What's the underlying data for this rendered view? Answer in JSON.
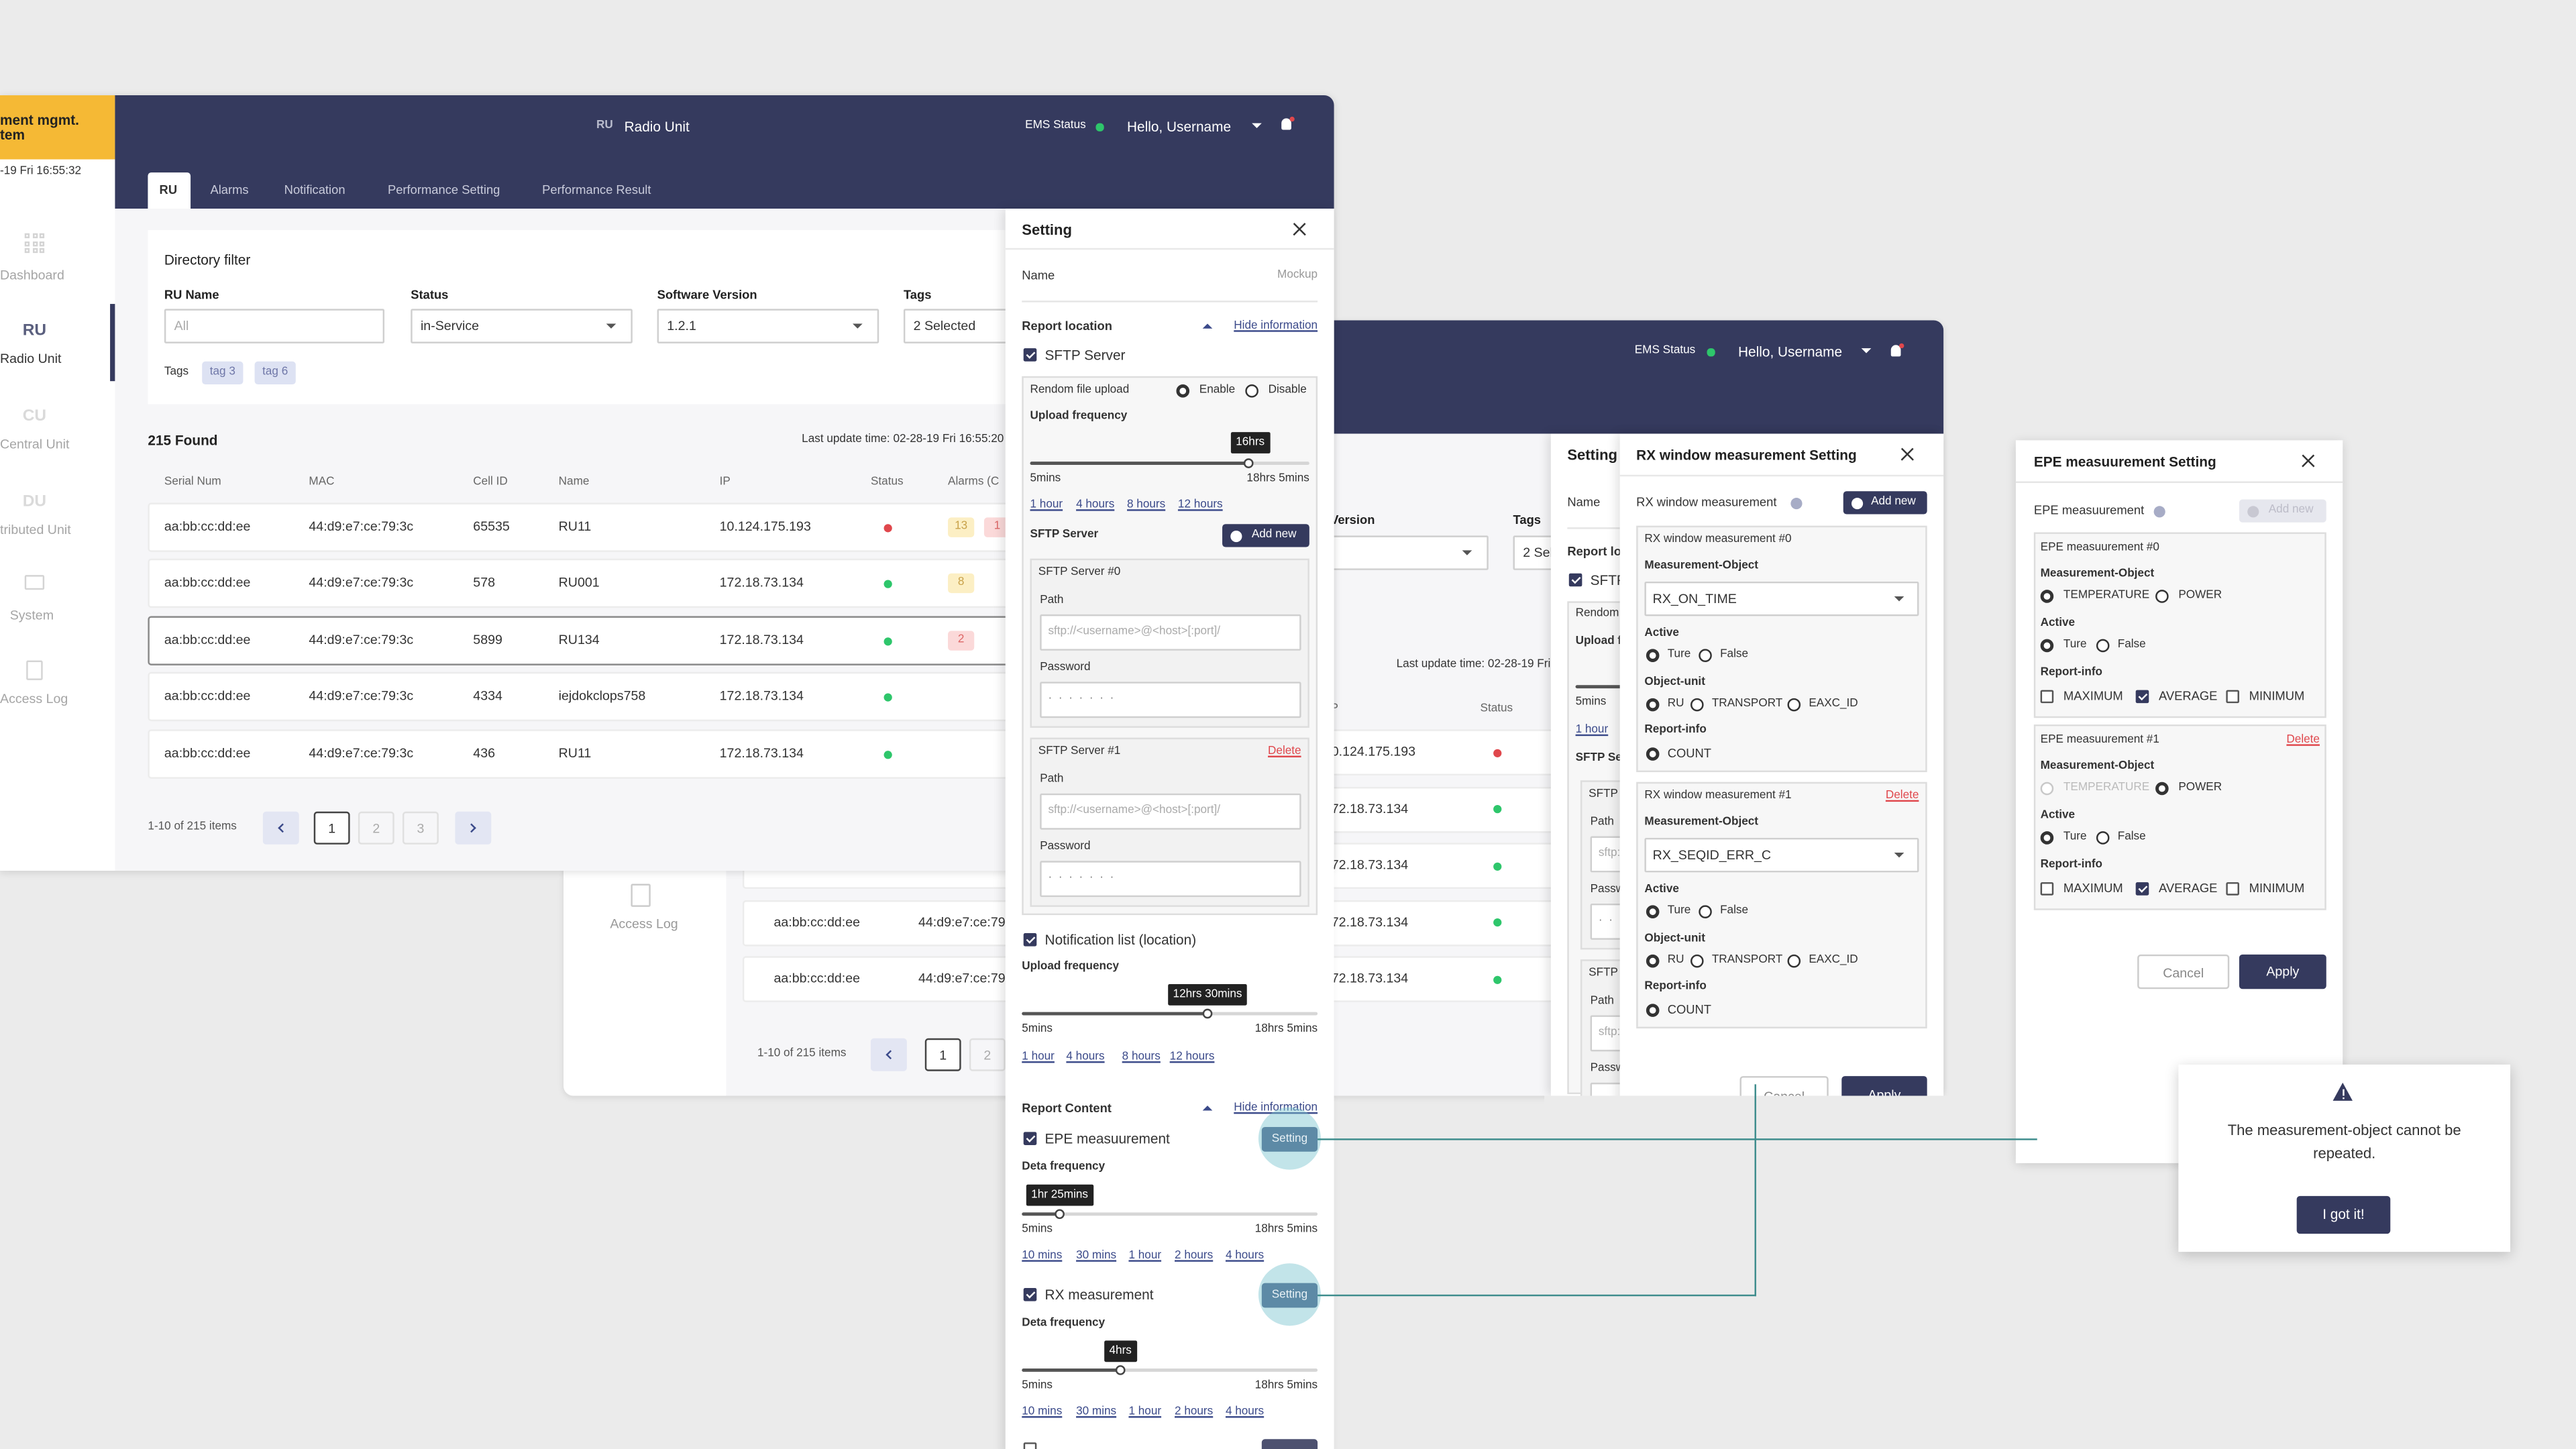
{
  "window1": {
    "brand": [
      "ment mgmt.",
      "tem"
    ],
    "datetime": "-19 Fri 16:55:32",
    "nav": [
      "Dashboard",
      "Radio Unit",
      "Central Unit",
      "tributed Unit",
      "System",
      "Access Log"
    ],
    "nav_icon_text": [
      "RU",
      "CU",
      "DU"
    ],
    "header": {
      "icon": "RU",
      "title": "Radio Unit",
      "ems": "EMS Status",
      "user": "Hello, Username"
    },
    "tabs": [
      "RU",
      "Alarms",
      "Notification",
      "Performance Setting",
      "Performance Result"
    ],
    "filter": {
      "title": "Directory filter",
      "labels": [
        "RU Name",
        "Status",
        "Software Version",
        "Tags"
      ],
      "values": [
        "All",
        "in-Service",
        "1.2.1",
        "2 Selected"
      ],
      "tags_label": "Tags",
      "tags": [
        "tag 3",
        "tag 6"
      ]
    },
    "found": "215 Found",
    "last_update": "Last update time: 02-28-19 Fri 16:55:20",
    "table": {
      "columns": [
        "Serial Num",
        "MAC",
        "Cell ID",
        "Name",
        "IP",
        "Status",
        "Alarms (C"
      ],
      "rows": [
        {
          "serial": "aa:bb:cc:dd:ee",
          "mac": "44:d9:e7:ce:79:3c",
          "cell": 65535,
          "name": "RU11",
          "ip": "10.124.175.193",
          "status_color": "#e0474c",
          "alarms": [
            {
              "value": 13,
              "color": "yellow"
            },
            {
              "value": 1,
              "color": "red"
            }
          ]
        },
        {
          "serial": "aa:bb:cc:dd:ee",
          "mac": "44:d9:e7:ce:79:3c",
          "cell": 578,
          "name": "RU001",
          "ip": "172.18.73.134",
          "status_color": "#2ec66b",
          "alarms": [
            {
              "value": 8,
              "color": "yellow"
            }
          ]
        },
        {
          "serial": "aa:bb:cc:dd:ee",
          "mac": "44:d9:e7:ce:79:3c",
          "cell": 5899,
          "name": "RU134",
          "ip": "172.18.73.134",
          "status_color": "#2ec66b",
          "alarms": [
            {
              "value": 2,
              "color": "red"
            }
          ]
        },
        {
          "serial": "aa:bb:cc:dd:ee",
          "mac": "44:d9:e7:ce:79:3c",
          "cell": 4334,
          "name": "iejdokclops758",
          "ip": "172.18.73.134",
          "status_color": "#2ec66b",
          "alarms": []
        },
        {
          "serial": "aa:bb:cc:dd:ee",
          "mac": "44:d9:e7:ce:79:3c",
          "cell": 436,
          "name": "RU11",
          "ip": "172.18.73.134",
          "status_color": "#2ec66b",
          "alarms": []
        }
      ]
    },
    "pagination": {
      "summary": "1-10 of 215 items",
      "pages": [
        "1",
        "2",
        "3"
      ]
    }
  },
  "setting": {
    "title": "Setting",
    "name_label": "Name",
    "name_value": "Mockup",
    "report_location": "Report location",
    "hide": "Hide information",
    "sftp_check": "SFTP Server",
    "random_upload": "Rendom file upload",
    "enable": "Enable",
    "disable": "Disable",
    "upload_frequency": "Upload frequency",
    "sftp_tooltip": "16hrs",
    "min": "5mins",
    "max": "18hrs 5mins",
    "upload_links": [
      "1 hour",
      "4 hours",
      "8 hours",
      "12 hours"
    ],
    "sftp_server": "SFTP Server",
    "add_new": "Add new",
    "servers": [
      {
        "title": "SFTP Server #0"
      },
      {
        "title": "SFTP Server #1",
        "delete": "Delete"
      }
    ],
    "path": "Path",
    "path_placeholder": "sftp://<username>@<host>[:port]/",
    "password": "Password",
    "password_dots": "· · · · · · ·",
    "notification_check": "Notification list (location)",
    "notification_tooltip": "12hrs 30mins",
    "report_content": "Report Content",
    "setting_button": "Setting",
    "measurements": [
      {
        "name": "EPE measuurement",
        "tooltip": "1hr 25mins"
      },
      {
        "name": "RX measurement",
        "tooltip": "4hrs"
      }
    ],
    "data_frequency": "Deta frequency",
    "data_links": [
      "10 mins",
      "30 mins",
      "1 hour",
      "2 hours",
      "4 hours"
    ]
  },
  "rx": {
    "title": "RX window measurement Setting",
    "label": "RX window measurement",
    "add_new": "Add new",
    "items": [
      {
        "title": "RX window measurement #0",
        "object": "RX_ON_TIME"
      },
      {
        "title": "RX window measurement #1",
        "object": "RX_SEQID_ERR_C",
        "delete": "Delete"
      }
    ],
    "measurement_object": "Measurement-Object",
    "active": "Active",
    "true": "Ture",
    "false": "False",
    "object_unit": "Object-unit",
    "units": [
      "RU",
      "TRANSPORT",
      "EAXC_ID"
    ],
    "report_info": "Report-info",
    "count": "COUNT",
    "cancel": "Cancel",
    "apply": "Apply"
  },
  "epe": {
    "title": "EPE measuurement Setting",
    "label": "EPE measuurement",
    "add_new": "Add new",
    "items": [
      {
        "title": "EPE measuurement #0",
        "object_index": 0
      },
      {
        "title": "EPE measuurement #1",
        "object_index": 1,
        "delete": "Delete"
      }
    ],
    "measurement_object": "Measurement-Object",
    "objects": [
      "TEMPERATURE",
      "POWER"
    ],
    "active": "Active",
    "true": "Ture",
    "false": "False",
    "report_info": "Report-info",
    "reports": [
      "MAXIMUM",
      "AVERAGE",
      "MINIMUM"
    ],
    "cancel": "Cancel",
    "apply": "Apply"
  },
  "alert": {
    "message": "The measurement-object cannot be repeated.",
    "button": "I got it!"
  }
}
